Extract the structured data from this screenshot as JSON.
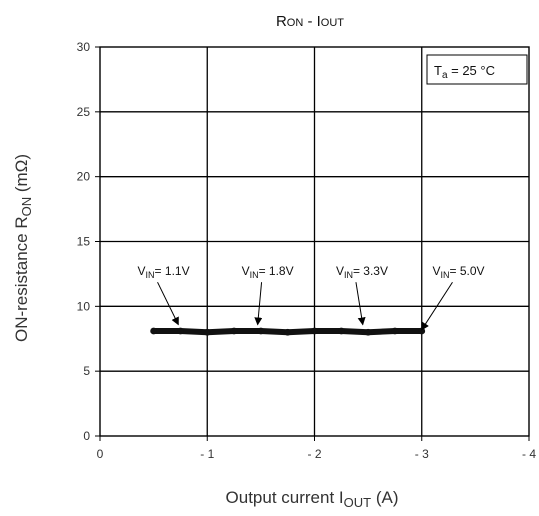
{
  "chart_data": {
    "type": "line",
    "title": {
      "main": "R",
      "main_sub": "ON",
      "sep": " - I",
      "tail_sub": "OUT"
    },
    "xlabel": {
      "text": "Output current  I",
      "sub": "OUT",
      "unit": "  (A)"
    },
    "ylabel": {
      "text": "ON-resistance  R",
      "sub": "ON",
      "unit": "  (mΩ)"
    },
    "xlim": [
      0,
      -4
    ],
    "ylim": [
      0,
      30
    ],
    "x_ticks": [
      0,
      -1,
      -2,
      -3,
      -4
    ],
    "x_tick_labels": [
      "0",
      "- 1",
      "- 2",
      "- 3",
      "- 4"
    ],
    "y_ticks": [
      0,
      5,
      10,
      15,
      20,
      25,
      30
    ],
    "y_tick_labels": [
      "0",
      "5",
      "10",
      "15",
      "20",
      "25",
      "30"
    ],
    "grid": true,
    "series": [
      {
        "x": [
          -0.5,
          -0.75,
          -1.0,
          -1.25,
          -1.5,
          -1.75,
          -2.0,
          -2.25,
          -2.5,
          -2.75,
          -3.0
        ],
        "y": [
          8.1,
          8.1,
          8.0,
          8.1,
          8.1,
          8.0,
          8.1,
          8.1,
          8.0,
          8.1,
          8.1
        ]
      }
    ],
    "annotations": [
      {
        "label": "V",
        "sub": "IN",
        "value": "= 1.1V",
        "text_x": -0.35,
        "text_y": 12.4,
        "arrow_to": [
          -0.73,
          8.6
        ]
      },
      {
        "label": "V",
        "sub": "IN",
        "value": "= 1.8V",
        "text_x": -1.32,
        "text_y": 12.4,
        "arrow_to": [
          -1.47,
          8.6
        ]
      },
      {
        "label": "V",
        "sub": "IN",
        "value": "= 3.3V",
        "text_x": -2.2,
        "text_y": 12.4,
        "arrow_to": [
          -2.45,
          8.6
        ]
      },
      {
        "label": "V",
        "sub": "IN",
        "value": "= 5.0V",
        "text_x": -3.1,
        "text_y": 12.4,
        "arrow_to": [
          -3.0,
          8.2
        ]
      }
    ],
    "legend_box": {
      "label": "T",
      "sub": "a",
      "value": " = 25 °C",
      "position": "top-right"
    },
    "colors": {
      "line": "#111111",
      "axes": "#000000",
      "text": "#333333"
    }
  }
}
